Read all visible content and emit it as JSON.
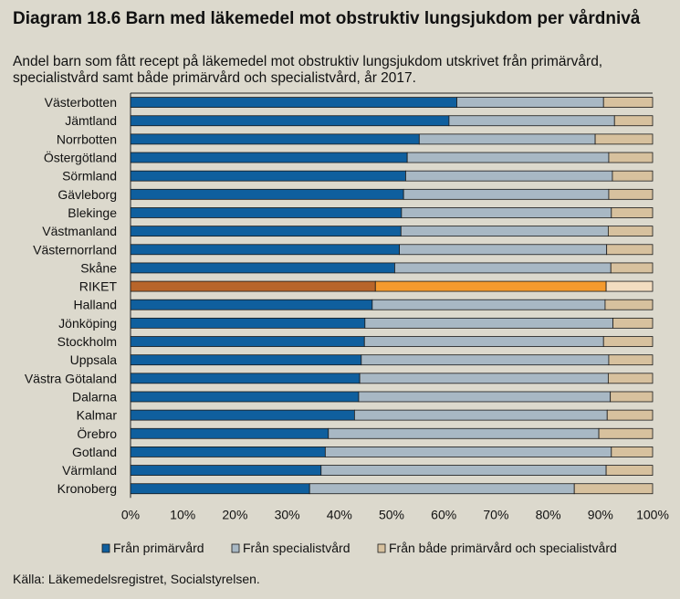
{
  "chart_data": {
    "type": "bar",
    "orientation": "horizontal",
    "stacked": "percent",
    "title": "Diagram 18.6 Barn med läkemedel mot obstruktiv lungsjukdom per vårdnivå",
    "subtitle": "Andel barn som fått recept på läkemedel mot obstruktiv lungsjukdom utskrivet från primärvård, specialistvård samt både primärvård och specialistvård, år 2017.",
    "source": "Källa: Läkemedelsregistret, Socialstyrelsen.",
    "xlim": [
      0,
      100
    ],
    "xticks": [
      "0%",
      "10%",
      "20%",
      "30%",
      "40%",
      "50%",
      "60%",
      "70%",
      "80%",
      "90%",
      "100%"
    ],
    "categories": [
      "Västerbotten",
      "Jämtland",
      "Norrbotten",
      "Östergötland",
      "Sörmland",
      "Gävleborg",
      "Blekinge",
      "Västmanland",
      "Västernorrland",
      "Skåne",
      "RIKET",
      "Halland",
      "Jönköping",
      "Stockholm",
      "Uppsala",
      "Västra Götaland",
      "Dalarna",
      "Kalmar",
      "Örebro",
      "Gotland",
      "Värmland",
      "Kronoberg"
    ],
    "highlight": "RIKET",
    "series": [
      {
        "name": "Från primärvård",
        "color": "#0f5f9e",
        "highlight_color": "#b8652a",
        "values": [
          62.5,
          61,
          55.3,
          53,
          52.7,
          52.3,
          51.9,
          51.8,
          51.5,
          50.6,
          46.9,
          46.3,
          44.9,
          44.8,
          44.2,
          43.9,
          43.7,
          42.9,
          37.9,
          37.3,
          36.5,
          34.3
        ]
      },
      {
        "name": "Från specialistvård",
        "color": "#a8b8c4",
        "highlight_color": "#f49a2e",
        "values": [
          28.1,
          31.7,
          33.7,
          38.6,
          39.6,
          39.3,
          40.2,
          39.7,
          39.7,
          41.4,
          44.2,
          44.6,
          47.5,
          45.8,
          47.4,
          47.6,
          48.2,
          48.4,
          51.8,
          54.8,
          54.6,
          50.7
        ]
      },
      {
        "name": "Från både primärvård och specialistvård",
        "color": "#d7c19e",
        "highlight_color": "#f3ddc0",
        "values": [
          9.4,
          7.3,
          11,
          8.4,
          7.7,
          8.4,
          7.9,
          8.5,
          8.8,
          8,
          8.9,
          9.1,
          7.6,
          9.4,
          8.4,
          8.5,
          8.1,
          8.7,
          10.3,
          7.9,
          8.9,
          15
        ]
      }
    ]
  }
}
